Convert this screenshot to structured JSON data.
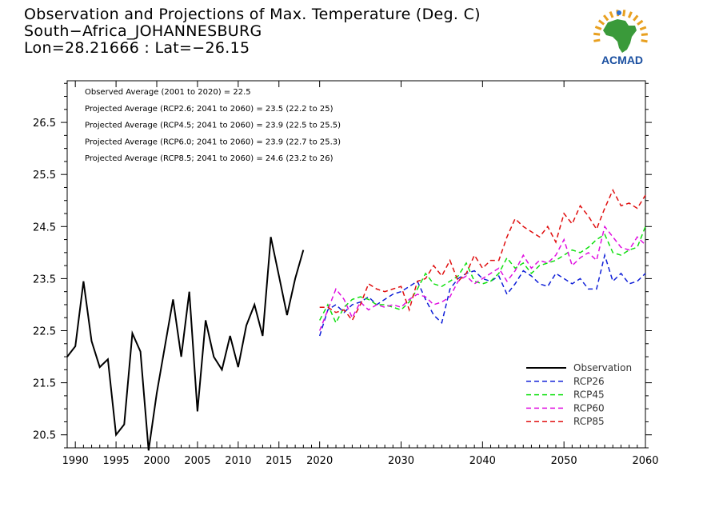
{
  "header": {
    "title_line1": "Observation and Projections of Max. Temperature (Deg. C)",
    "title_line2": "South−Africa_JOHANNESBURG",
    "title_line3": "Lon=28.21666 : Lat=−26.15"
  },
  "logo": {
    "text": "ACMAD",
    "icon": "africa-sun-logo-icon",
    "colors": {
      "africa": "#3a9a3a",
      "sun": "#e8a020",
      "text": "#1a4fa0"
    }
  },
  "chart_data": {
    "type": "line",
    "xlim": [
      1989,
      2060
    ],
    "ylim": [
      20.25,
      27.3
    ],
    "x_ticks": [
      1990,
      1995,
      2000,
      2005,
      2010,
      2015,
      2020,
      2030,
      2040,
      2050,
      2060
    ],
    "y_ticks": [
      20.5,
      21.5,
      22.5,
      23.5,
      24.5,
      25.5,
      26.5
    ],
    "grid": false,
    "legend_position": "bottom-right",
    "annotations": [
      "Observed Average (2001 to 2020) = 22.5",
      "Projected Average (RCP2.6; 2041 to 2060) = 23.5 (22.2 to 25)",
      "Projected Average (RCP4.5; 2041 to 2060) = 23.9 (22.5 to 25.5)",
      "Projected Average (RCP6.0; 2041 to 2060) = 23.9 (22.7 to 25.3)",
      "Projected Average (RCP8.5; 2041 to 2060) = 24.6 (23.2 to 26)"
    ],
    "series": [
      {
        "name": "Observation",
        "color": "#000000",
        "dash": "solid",
        "x": [
          1989,
          1990,
          1991,
          1992,
          1993,
          1994,
          1995,
          1996,
          1997,
          1998,
          1999,
          2000,
          2001,
          2002,
          2003,
          2004,
          2005,
          2006,
          2007,
          2008,
          2009,
          2010,
          2011,
          2012,
          2013,
          2014,
          2015,
          2016,
          2017,
          2018,
          2019
        ],
        "values": [
          22.0,
          22.2,
          23.45,
          22.3,
          21.8,
          21.95,
          20.5,
          20.7,
          22.45,
          22.1,
          20.2,
          21.3,
          22.2,
          23.1,
          22.0,
          23.25,
          20.95,
          22.7,
          22.0,
          21.75,
          22.4,
          21.8,
          22.6,
          23.0,
          22.4,
          24.3,
          23.55,
          22.8,
          23.5,
          24.05,
          null
        ]
      },
      {
        "name": "RCP26",
        "color": "#1020d8",
        "dash": "dashed",
        "x": [
          2020,
          2021,
          2022,
          2023,
          2024,
          2025,
          2026,
          2027,
          2028,
          2029,
          2030,
          2031,
          2032,
          2033,
          2034,
          2035,
          2036,
          2037,
          2038,
          2039,
          2040,
          2041,
          2042,
          2043,
          2044,
          2045,
          2046,
          2047,
          2048,
          2049,
          2050,
          2051,
          2052,
          2053,
          2054,
          2055,
          2056,
          2057,
          2058,
          2059,
          2060
        ],
        "values": [
          22.4,
          22.9,
          23.0,
          22.85,
          23.0,
          23.05,
          23.15,
          23.0,
          23.1,
          23.2,
          23.25,
          23.35,
          23.45,
          23.1,
          22.8,
          22.65,
          23.3,
          23.5,
          23.6,
          23.65,
          23.5,
          23.45,
          23.55,
          23.2,
          23.4,
          23.65,
          23.55,
          23.4,
          23.35,
          23.6,
          23.5,
          23.4,
          23.5,
          23.3,
          23.3,
          23.95,
          23.45,
          23.6,
          23.4,
          23.45,
          23.6
        ]
      },
      {
        "name": "RCP45",
        "color": "#10e010",
        "dash": "dashed",
        "x": [
          2020,
          2021,
          2022,
          2023,
          2024,
          2025,
          2026,
          2027,
          2028,
          2029,
          2030,
          2031,
          2032,
          2033,
          2034,
          2035,
          2036,
          2037,
          2038,
          2039,
          2040,
          2041,
          2042,
          2043,
          2044,
          2045,
          2046,
          2047,
          2048,
          2049,
          2050,
          2051,
          2052,
          2053,
          2054,
          2055,
          2056,
          2057,
          2058,
          2059,
          2060
        ],
        "values": [
          22.7,
          23.0,
          22.65,
          22.95,
          23.1,
          23.15,
          23.1,
          23.0,
          23.0,
          22.95,
          22.9,
          23.05,
          23.3,
          23.6,
          23.4,
          23.35,
          23.45,
          23.55,
          23.8,
          23.45,
          23.4,
          23.45,
          23.6,
          23.9,
          23.7,
          23.8,
          23.6,
          23.75,
          23.8,
          23.85,
          23.95,
          24.05,
          24.0,
          24.1,
          24.25,
          24.35,
          24.0,
          23.95,
          24.05,
          24.1,
          24.5
        ]
      },
      {
        "name": "RCP60",
        "color": "#e010e0",
        "dash": "dashed",
        "x": [
          2020,
          2021,
          2022,
          2023,
          2024,
          2025,
          2026,
          2027,
          2028,
          2029,
          2030,
          2031,
          2032,
          2033,
          2034,
          2035,
          2036,
          2037,
          2038,
          2039,
          2040,
          2041,
          2042,
          2043,
          2044,
          2045,
          2046,
          2047,
          2048,
          2049,
          2050,
          2051,
          2052,
          2053,
          2054,
          2055,
          2056,
          2057,
          2058,
          2059,
          2060
        ],
        "values": [
          22.5,
          22.9,
          23.3,
          23.1,
          22.75,
          23.05,
          22.9,
          23.0,
          22.95,
          23.0,
          22.95,
          23.1,
          23.2,
          23.15,
          23.0,
          23.05,
          23.15,
          23.45,
          23.55,
          23.4,
          23.5,
          23.6,
          23.7,
          23.45,
          23.65,
          23.95,
          23.7,
          23.85,
          23.8,
          23.95,
          24.25,
          23.75,
          23.9,
          24.0,
          23.85,
          24.5,
          24.3,
          24.1,
          24.05,
          24.3,
          24.15
        ]
      },
      {
        "name": "RCP85",
        "color": "#e01010",
        "dash": "dashed",
        "x": [
          2020,
          2021,
          2022,
          2023,
          2024,
          2025,
          2026,
          2027,
          2028,
          2029,
          2030,
          2031,
          2032,
          2033,
          2034,
          2035,
          2036,
          2037,
          2038,
          2039,
          2040,
          2041,
          2042,
          2043,
          2044,
          2045,
          2046,
          2047,
          2048,
          2049,
          2050,
          2051,
          2052,
          2053,
          2054,
          2055,
          2056,
          2057,
          2058,
          2059,
          2060
        ],
        "values": [
          22.95,
          22.95,
          22.85,
          22.9,
          22.7,
          23.0,
          23.4,
          23.3,
          23.25,
          23.3,
          23.35,
          22.9,
          23.45,
          23.5,
          23.75,
          23.55,
          23.85,
          23.45,
          23.6,
          23.95,
          23.7,
          23.85,
          23.85,
          24.3,
          24.65,
          24.5,
          24.4,
          24.3,
          24.5,
          24.2,
          24.75,
          24.55,
          24.9,
          24.7,
          24.45,
          24.85,
          25.2,
          24.9,
          24.95,
          24.85,
          25.1
        ]
      }
    ]
  }
}
